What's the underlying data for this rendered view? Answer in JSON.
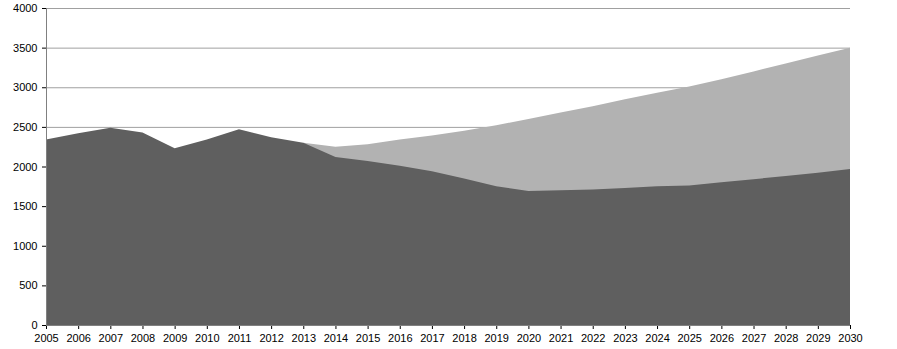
{
  "chart_data": {
    "type": "area",
    "x": [
      2005,
      2006,
      2007,
      2008,
      2009,
      2010,
      2011,
      2012,
      2013,
      2014,
      2015,
      2016,
      2017,
      2018,
      2019,
      2020,
      2021,
      2022,
      2023,
      2024,
      2025,
      2026,
      2027,
      2028,
      2029,
      2030
    ],
    "series": [
      {
        "color": "#b2b2b2",
        "values": [
          null,
          null,
          null,
          null,
          null,
          null,
          null,
          null,
          2300,
          2250,
          2280,
          2340,
          2390,
          2450,
          2520,
          2600,
          2680,
          2760,
          2850,
          2930,
          3010,
          3100,
          3200,
          3300,
          3400,
          3500
        ]
      },
      {
        "color": "#5f5f5f",
        "values": [
          2340,
          2420,
          2490,
          2430,
          2230,
          2340,
          2470,
          2370,
          2300,
          2120,
          2070,
          2010,
          1940,
          1850,
          1750,
          1690,
          1700,
          1710,
          1730,
          1750,
          1760,
          1800,
          1840,
          1880,
          1920,
          1970
        ]
      }
    ],
    "xlim": [
      2005,
      2030
    ],
    "xticks": [
      2005,
      2006,
      2007,
      2008,
      2009,
      2010,
      2011,
      2012,
      2013,
      2014,
      2015,
      2016,
      2017,
      2018,
      2019,
      2020,
      2021,
      2022,
      2023,
      2024,
      2025,
      2026,
      2027,
      2028,
      2029,
      2030
    ],
    "ylim": [
      0,
      4000
    ],
    "yticks": [
      0,
      500,
      1000,
      1500,
      2000,
      2500,
      3000,
      3500,
      4000
    ],
    "stacked": false,
    "grid": true
  }
}
